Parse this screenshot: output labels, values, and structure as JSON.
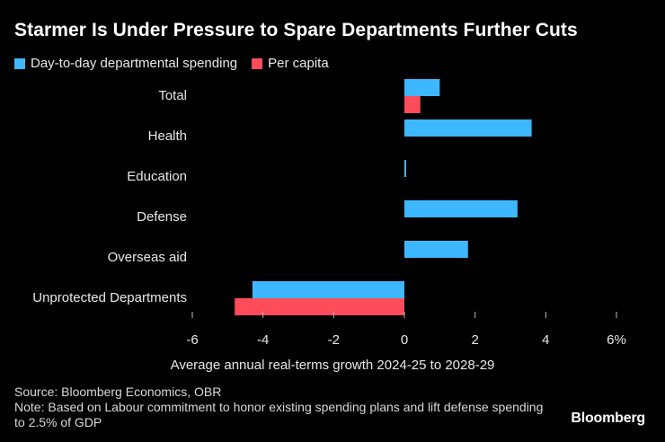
{
  "title": "Starmer Is Under Pressure to Spare Departments Further Cuts",
  "colors": {
    "series1": "#3db7ff",
    "series2": "#ff4c5b",
    "background": "#000000"
  },
  "chart_data": {
    "type": "bar",
    "orientation": "horizontal",
    "categories": [
      "Total",
      "Health",
      "Education",
      "Defense",
      "Overseas aid",
      "Unprotected Departments"
    ],
    "series": [
      {
        "name": "Day-to-day departmental spending",
        "values": [
          1.0,
          3.6,
          0.05,
          3.2,
          1.8,
          -4.3
        ]
      },
      {
        "name": "Per capita",
        "values": [
          0.45,
          null,
          null,
          null,
          null,
          -4.8
        ]
      }
    ],
    "xlim": [
      -6,
      6
    ],
    "xticks": [
      -6,
      -4,
      -2,
      0,
      2,
      4,
      6
    ],
    "xtick_labels": [
      "-6",
      "-4",
      "-2",
      "0",
      "2",
      "4",
      "6%"
    ],
    "xlabel": "Average annual real-terms growth 2024-25 to 2028-29",
    "ylabel": "",
    "grid": false,
    "legend": "top-left"
  },
  "source": "Source: Bloomberg Economics, OBR",
  "note": "Note: Based on Labour commitment to honor existing spending plans and lift defense spending to 2.5% of GDP",
  "logo": "Bloomberg"
}
